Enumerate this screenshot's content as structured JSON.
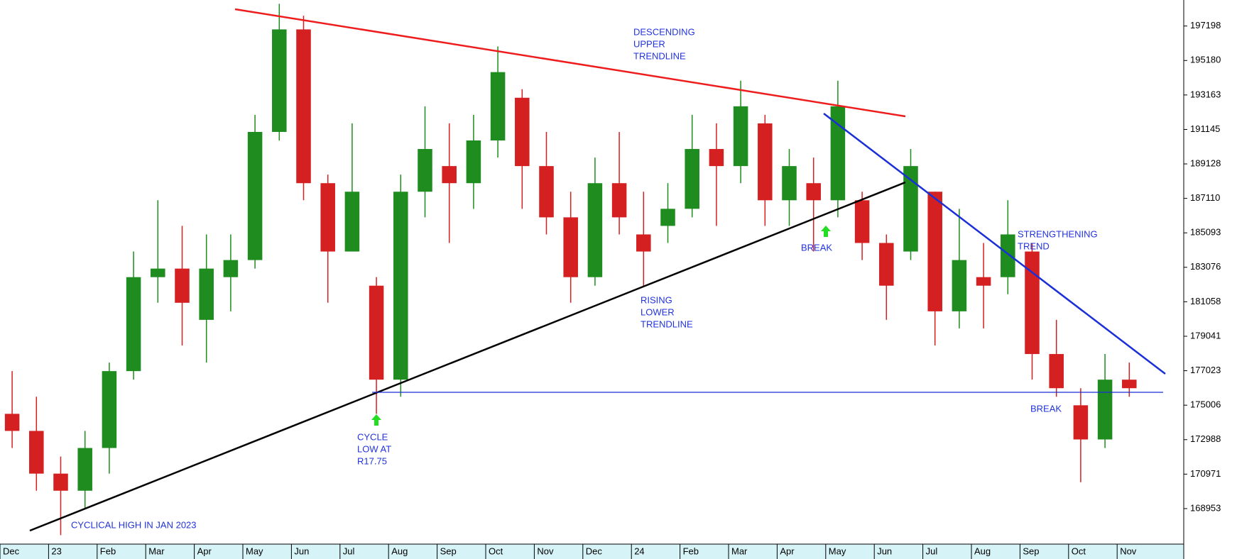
{
  "chart_data": {
    "type": "candlestick",
    "categories": [
      "Dec",
      null,
      "23",
      null,
      "Feb",
      null,
      "Mar",
      null,
      "Apr",
      null,
      "May",
      null,
      "Jun",
      null,
      "Jul",
      null,
      "Aug",
      null,
      "Sep",
      null,
      "Oct",
      null,
      "Nov",
      null,
      "Dec",
      null,
      "24",
      null,
      "Feb",
      null,
      "Mar",
      null,
      "Apr",
      null,
      "May",
      null,
      "Jun",
      null,
      "Jul",
      null,
      "Aug",
      null,
      "Sep",
      null,
      "Oct",
      null,
      "Nov"
    ],
    "open": [
      174500,
      173500,
      171000,
      170000,
      172500,
      177000,
      182500,
      183000,
      180000,
      182500,
      183500,
      191000,
      197000,
      188000,
      184000,
      182000,
      176500,
      187500,
      189000,
      188000,
      190500,
      193000,
      189000,
      186000,
      182500,
      188000,
      185000,
      185500,
      186500,
      190000,
      189000,
      191500,
      187000,
      188000,
      187000,
      187000,
      184500,
      184000,
      187500,
      180500,
      182500,
      182500,
      184000,
      178000,
      175000,
      173000,
      176500
    ],
    "high": [
      177000,
      175500,
      172000,
      173500,
      177500,
      184000,
      187000,
      185500,
      185000,
      185000,
      192000,
      198500,
      197800,
      188500,
      191500,
      182500,
      188500,
      192500,
      191500,
      192000,
      196000,
      193500,
      191000,
      187500,
      189500,
      191000,
      187500,
      188000,
      192000,
      191500,
      194000,
      192000,
      190000,
      189500,
      194000,
      187500,
      185000,
      190000,
      187500,
      186500,
      184500,
      187000,
      184500,
      180000,
      176000,
      178000,
      177500
    ],
    "low": [
      172500,
      170000,
      167400,
      169000,
      171000,
      176500,
      181000,
      178500,
      177500,
      180500,
      183000,
      190500,
      187000,
      181000,
      184000,
      174500,
      175500,
      186000,
      184500,
      186500,
      189500,
      186500,
      185000,
      181000,
      182000,
      185000,
      182000,
      184500,
      186000,
      185500,
      188000,
      185500,
      185500,
      184000,
      186000,
      183500,
      180000,
      183500,
      178500,
      179500,
      179500,
      181500,
      176500,
      175500,
      170500,
      172500,
      175500
    ],
    "close": [
      173500,
      171000,
      170000,
      172500,
      177000,
      182500,
      183000,
      181000,
      183000,
      183500,
      191000,
      197000,
      188000,
      184000,
      187500,
      176500,
      187500,
      190000,
      188000,
      190500,
      194500,
      189000,
      186000,
      182500,
      188000,
      186000,
      184000,
      186500,
      190000,
      189000,
      192500,
      187000,
      189000,
      187000,
      192500,
      184500,
      182000,
      189000,
      180500,
      183500,
      182000,
      185000,
      178000,
      176000,
      173000,
      176500,
      176000
    ],
    "up_color": "#1e8c1e",
    "down_color": "#d42020",
    "ylim": [
      166875,
      198721
    ],
    "yticks": [
      197198,
      195180,
      193163,
      191145,
      189128,
      187110,
      185093,
      183076,
      181058,
      179041,
      177023,
      175006,
      172988,
      170971,
      168953
    ],
    "annotations": [
      {
        "lines": [
          "DESCENDING",
          "UPPER",
          "TRENDLINE"
        ]
      },
      {
        "lines": [
          "RISING",
          "LOWER",
          "TRENDLINE"
        ]
      },
      {
        "lines": [
          "CYCLE",
          "LOW AT",
          "R17.75"
        ]
      },
      {
        "lines": [
          "CYCLICAL HIGH IN JAN 2023"
        ]
      },
      {
        "lines": [
          "BREAK"
        ]
      },
      {
        "lines": [
          "STRENGTHENING",
          "TREND"
        ]
      },
      {
        "lines": [
          "BREAK"
        ]
      }
    ]
  }
}
